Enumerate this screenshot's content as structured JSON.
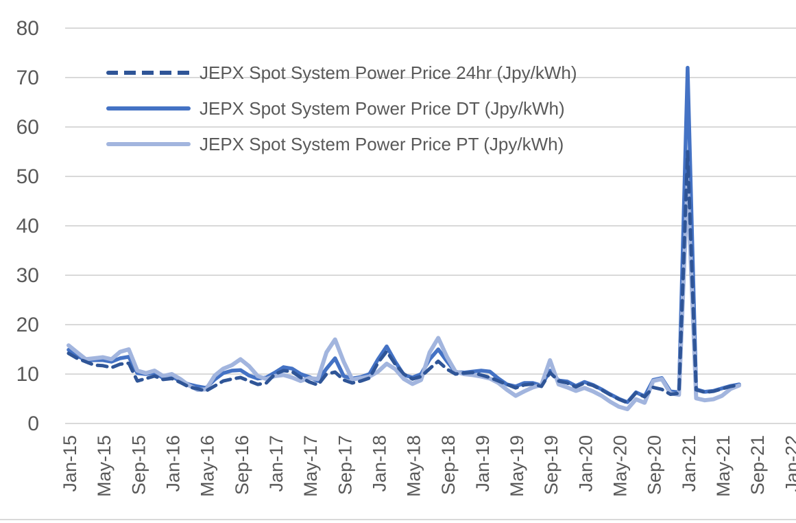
{
  "colors": {
    "grid": "#D9D9D9",
    "text": "#595959",
    "background": "#FFFFFF",
    "bottom_rule": "#D9D9D9"
  },
  "chart_data": {
    "type": "line",
    "title": "",
    "xlabel": "",
    "ylabel": "",
    "ylim": [
      0,
      80
    ],
    "yticks": [
      0,
      10,
      20,
      30,
      40,
      50,
      60,
      70,
      80
    ],
    "grid": "horizontal",
    "legend_position": "top-left-inside",
    "x_tick_every_n_months": 4,
    "x_tick_labels": [
      "Jan-15",
      "May-15",
      "Sep-15",
      "Jan-16",
      "May-16",
      "Sep-16",
      "Jan-17",
      "May-17",
      "Sep-17",
      "Jan-18",
      "May-18",
      "Sep-18",
      "Jan-19",
      "May-19",
      "Sep-19",
      "Jan-20",
      "May-20",
      "Sep-20",
      "Jan-21",
      "May-21",
      "Sep-21",
      "Jan-22"
    ],
    "categories": [
      "Jan-15",
      "Feb-15",
      "Mar-15",
      "Apr-15",
      "May-15",
      "Jun-15",
      "Jul-15",
      "Aug-15",
      "Sep-15",
      "Oct-15",
      "Nov-15",
      "Dec-15",
      "Jan-16",
      "Feb-16",
      "Mar-16",
      "Apr-16",
      "May-16",
      "Jun-16",
      "Jul-16",
      "Aug-16",
      "Sep-16",
      "Oct-16",
      "Nov-16",
      "Dec-16",
      "Jan-17",
      "Feb-17",
      "Mar-17",
      "Apr-17",
      "May-17",
      "Jun-17",
      "Jul-17",
      "Aug-17",
      "Sep-17",
      "Oct-17",
      "Nov-17",
      "Dec-17",
      "Jan-18",
      "Feb-18",
      "Mar-18",
      "Apr-18",
      "May-18",
      "Jun-18",
      "Jul-18",
      "Aug-18",
      "Sep-18",
      "Oct-18",
      "Nov-18",
      "Dec-18",
      "Jan-19",
      "Feb-19",
      "Mar-19",
      "Apr-19",
      "May-19",
      "Jun-19",
      "Jul-19",
      "Aug-19",
      "Sep-19",
      "Oct-19",
      "Nov-19",
      "Dec-19",
      "Jan-20",
      "Feb-20",
      "Mar-20",
      "Apr-20",
      "May-20",
      "Jun-20",
      "Jul-20",
      "Aug-20",
      "Sep-20",
      "Oct-20",
      "Nov-20",
      "Dec-20",
      "Jan-21",
      "Feb-21",
      "Mar-21",
      "Apr-21",
      "May-21",
      "Jun-21",
      "Jul-21"
    ],
    "series": [
      {
        "name": "JEPX Spot System Power Price 24hr (Jpy/kWh)",
        "style": "dashed",
        "color": "#2F5597",
        "values": [
          14.2,
          13.2,
          12.5,
          11.8,
          11.7,
          11.3,
          12.0,
          12.2,
          8.6,
          9.1,
          9.6,
          8.9,
          9.1,
          8.3,
          7.4,
          7.0,
          6.6,
          7.6,
          8.6,
          9.0,
          9.3,
          8.6,
          7.9,
          8.2,
          10.0,
          10.7,
          10.5,
          9.3,
          8.4,
          7.8,
          10.0,
          10.4,
          8.8,
          8.2,
          8.6,
          9.2,
          12.3,
          14.6,
          12.0,
          10.0,
          9.0,
          9.5,
          11.1,
          12.6,
          11.0,
          10.0,
          10.2,
          10.3,
          9.8,
          9.3,
          8.6,
          7.9,
          7.2,
          7.8,
          8.0,
          7.5,
          10.3,
          8.6,
          8.2,
          7.4,
          8.2,
          7.7,
          6.8,
          5.8,
          4.9,
          4.2,
          6.2,
          5.4,
          7.3,
          6.9,
          5.9,
          6.1,
          55.0,
          6.8,
          6.3,
          6.5,
          7.0,
          7.5,
          7.8
        ]
      },
      {
        "name": "JEPX Spot System Power Price DT (Jpy/kWh)",
        "style": "solid",
        "color": "#4472C4",
        "values": [
          14.9,
          13.7,
          12.8,
          12.8,
          12.8,
          12.5,
          13.2,
          13.5,
          10.2,
          10.0,
          10.3,
          9.2,
          9.5,
          8.6,
          7.9,
          7.5,
          7.2,
          8.9,
          10.2,
          10.7,
          10.8,
          9.7,
          9.1,
          9.3,
          10.3,
          11.4,
          11.1,
          10.0,
          9.4,
          8.6,
          11.1,
          13.2,
          9.6,
          9.1,
          9.4,
          10.0,
          13.0,
          15.6,
          12.5,
          9.8,
          9.3,
          10.0,
          13.0,
          15.0,
          12.6,
          10.4,
          10.3,
          10.5,
          10.7,
          10.5,
          9.1,
          7.9,
          7.5,
          8.2,
          8.2,
          7.7,
          10.7,
          8.7,
          8.5,
          7.6,
          8.4,
          7.8,
          6.9,
          5.9,
          5.0,
          4.3,
          6.3,
          5.5,
          8.8,
          9.2,
          6.5,
          6.3,
          72.0,
          6.9,
          6.4,
          6.6,
          7.1,
          7.6,
          7.9
        ]
      },
      {
        "name": "JEPX Spot System Power Price PT (Jpy/kWh)",
        "style": "solid-light",
        "color": "#A2B5DE",
        "values": [
          15.8,
          14.4,
          13.0,
          13.2,
          13.4,
          13.0,
          14.5,
          15.0,
          10.7,
          10.2,
          10.7,
          9.6,
          10.0,
          9.0,
          7.7,
          6.8,
          6.9,
          9.7,
          11.1,
          11.8,
          13.0,
          11.6,
          9.6,
          9.0,
          9.6,
          9.8,
          9.3,
          8.6,
          9.2,
          9.0,
          14.4,
          17.0,
          12.5,
          8.9,
          9.2,
          9.5,
          10.5,
          12.1,
          11.0,
          9.0,
          8.0,
          8.8,
          14.4,
          17.3,
          13.5,
          10.5,
          10.0,
          9.8,
          9.5,
          9.1,
          8.2,
          6.8,
          5.6,
          6.5,
          7.3,
          7.8,
          12.8,
          7.9,
          7.3,
          6.6,
          7.2,
          6.5,
          5.6,
          4.4,
          3.4,
          2.9,
          4.9,
          4.2,
          8.6,
          9.0,
          6.1,
          5.8,
          49.0,
          5.1,
          4.7,
          4.9,
          5.6,
          7.0,
          7.7
        ]
      }
    ]
  }
}
